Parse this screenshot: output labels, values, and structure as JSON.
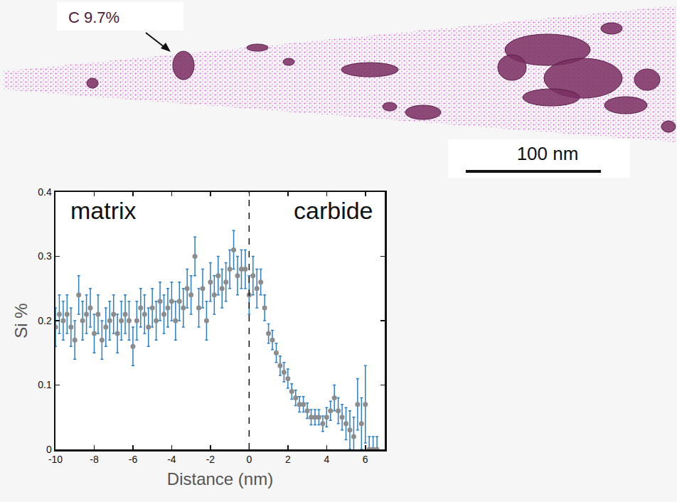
{
  "image": {
    "label": "C 9.7%",
    "scale_bar": "100 nm"
  },
  "chart_data": {
    "type": "scatter",
    "x_label": "Distance (nm)",
    "y_label": "Si %",
    "annotations": [
      "matrix",
      "carbide"
    ],
    "vline": 0,
    "xlim": [
      -10,
      7
    ],
    "xticks": [
      -10,
      -8,
      -6,
      -4,
      -2,
      0,
      2,
      4,
      6
    ],
    "ylim": [
      0,
      0.4
    ],
    "yticks": [
      0,
      0.1,
      0.2,
      0.3,
      0.4
    ],
    "grid": false,
    "marker": "circle",
    "series": [
      {
        "color": "#8c8c8c",
        "x": [
          -10,
          -9.8,
          -9.6,
          -9.4,
          -9.2,
          -9,
          -8.8,
          -8.6,
          -8.4,
          -8.2,
          -8,
          -7.8,
          -7.6,
          -7.4,
          -7.2,
          -7,
          -6.8,
          -6.6,
          -6.4,
          -6.2,
          -6,
          -5.8,
          -5.6,
          -5.4,
          -5.2,
          -5,
          -4.8,
          -4.6,
          -4.4,
          -4.2,
          -4,
          -3.8,
          -3.6,
          -3.4,
          -3.2,
          -3,
          -2.8,
          -2.6,
          -2.4,
          -2.2,
          -2,
          -1.8,
          -1.6,
          -1.4,
          -1.2,
          -1,
          -0.8,
          -0.6,
          -0.4,
          -0.2,
          0,
          0.2,
          0.4,
          0.6,
          0.8,
          1,
          1.2,
          1.4,
          1.6,
          1.8,
          2,
          2.2,
          2.4,
          2.6,
          2.8,
          3,
          3.2,
          3.4,
          3.6,
          3.8,
          4,
          4.2,
          4.4,
          4.6,
          4.8,
          5,
          5.2,
          5.4,
          5.6,
          5.8,
          6,
          6.2,
          6.4,
          6.6
        ],
        "values": [
          0.19,
          0.21,
          0.2,
          0.21,
          0.19,
          0.17,
          0.24,
          0.2,
          0.21,
          0.22,
          0.18,
          0.21,
          0.17,
          0.19,
          0.2,
          0.21,
          0.18,
          0.2,
          0.21,
          0.2,
          0.16,
          0.2,
          0.22,
          0.21,
          0.19,
          0.22,
          0.2,
          0.23,
          0.21,
          0.22,
          0.23,
          0.2,
          0.23,
          0.22,
          0.25,
          0.24,
          0.3,
          0.22,
          0.25,
          0.2,
          0.26,
          0.24,
          0.27,
          0.25,
          0.26,
          0.28,
          0.31,
          0.27,
          0.28,
          0.28,
          0.24,
          0.27,
          0.25,
          0.26,
          0.22,
          0.18,
          0.17,
          0.15,
          0.13,
          0.12,
          0.11,
          0.09,
          0.08,
          0.07,
          0.07,
          0.06,
          0.05,
          0.05,
          0.05,
          0.04,
          0.05,
          0.06,
          0.08,
          0.06,
          0.05,
          0.04,
          0.03,
          0.02,
          0.07,
          0.04,
          0.07,
          0,
          0,
          0
        ],
        "error": [
          0.03,
          0.03,
          0.03,
          0.03,
          0.03,
          0.03,
          0.03,
          0.03,
          0.03,
          0.03,
          0.03,
          0.03,
          0.03,
          0.03,
          0.03,
          0.03,
          0.03,
          0.03,
          0.03,
          0.03,
          0.03,
          0.03,
          0.03,
          0.03,
          0.03,
          0.03,
          0.03,
          0.03,
          0.03,
          0.03,
          0.03,
          0.03,
          0.03,
          0.03,
          0.03,
          0.03,
          0.03,
          0.03,
          0.03,
          0.03,
          0.03,
          0.03,
          0.03,
          0.03,
          0.03,
          0.03,
          0.03,
          0.03,
          0.03,
          0.03,
          0.03,
          0.03,
          0.03,
          0.02,
          0.02,
          0.015,
          0.015,
          0.015,
          0.015,
          0.015,
          0.015,
          0.012,
          0.012,
          0.012,
          0.012,
          0.012,
          0.012,
          0.012,
          0.012,
          0.012,
          0.015,
          0.015,
          0.02,
          0.02,
          0.02,
          0.025,
          0.03,
          0.03,
          0.04,
          0.04,
          0.06,
          0.02,
          0.02,
          0.02
        ]
      }
    ]
  }
}
